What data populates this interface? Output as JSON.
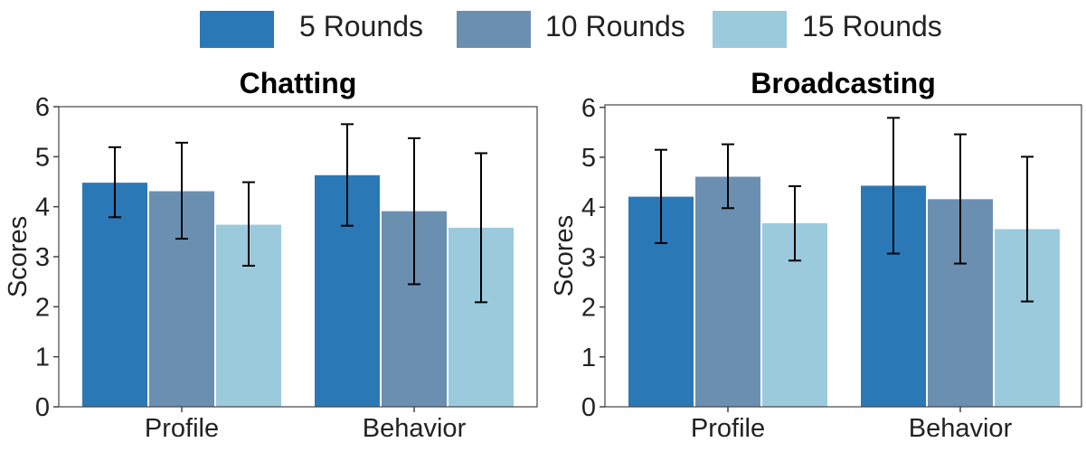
{
  "legend": [
    {
      "label": "5 Rounds",
      "color": "#2b78b6"
    },
    {
      "label": "10 Rounds",
      "color": "#6b8fb1"
    },
    {
      "label": "15 Rounds",
      "color": "#9ccadd"
    }
  ],
  "chart_data": [
    {
      "type": "bar",
      "title": "Chatting",
      "ylabel": "Scores",
      "xlabel": "",
      "ylim": [
        0,
        6
      ],
      "yticks": [
        "0",
        "1",
        "2",
        "3",
        "4",
        "5",
        "6"
      ],
      "categories": [
        "Profile",
        "Behavior"
      ],
      "series": [
        {
          "name": "5 Rounds",
          "values": [
            4.48,
            4.63
          ],
          "err_low": [
            3.79,
            3.62
          ],
          "err_high": [
            5.19,
            5.65
          ]
        },
        {
          "name": "10 Rounds",
          "values": [
            4.31,
            3.91
          ],
          "err_low": [
            3.36,
            2.45
          ],
          "err_high": [
            5.28,
            5.37
          ]
        },
        {
          "name": "15 Rounds",
          "values": [
            3.64,
            3.58
          ],
          "err_low": [
            2.82,
            2.09
          ],
          "err_high": [
            4.49,
            5.07
          ]
        }
      ]
    },
    {
      "type": "bar",
      "title": "Broadcasting",
      "ylabel": "Scores",
      "xlabel": "",
      "ylim": [
        0,
        6.05
      ],
      "yticks": [
        "0",
        "1",
        "2",
        "3",
        "4",
        "5",
        "6"
      ],
      "categories": [
        "Profile",
        "Behavior"
      ],
      "series": [
        {
          "name": "5 Rounds",
          "values": [
            4.21,
            4.43
          ],
          "err_low": [
            3.28,
            3.07
          ],
          "err_high": [
            5.15,
            5.79
          ]
        },
        {
          "name": "10 Rounds",
          "values": [
            4.61,
            4.16
          ],
          "err_low": [
            3.98,
            2.87
          ],
          "err_high": [
            5.26,
            5.46
          ]
        },
        {
          "name": "15 Rounds",
          "values": [
            3.68,
            3.56
          ],
          "err_low": [
            2.93,
            2.11
          ],
          "err_high": [
            4.42,
            5.01
          ]
        }
      ]
    }
  ]
}
